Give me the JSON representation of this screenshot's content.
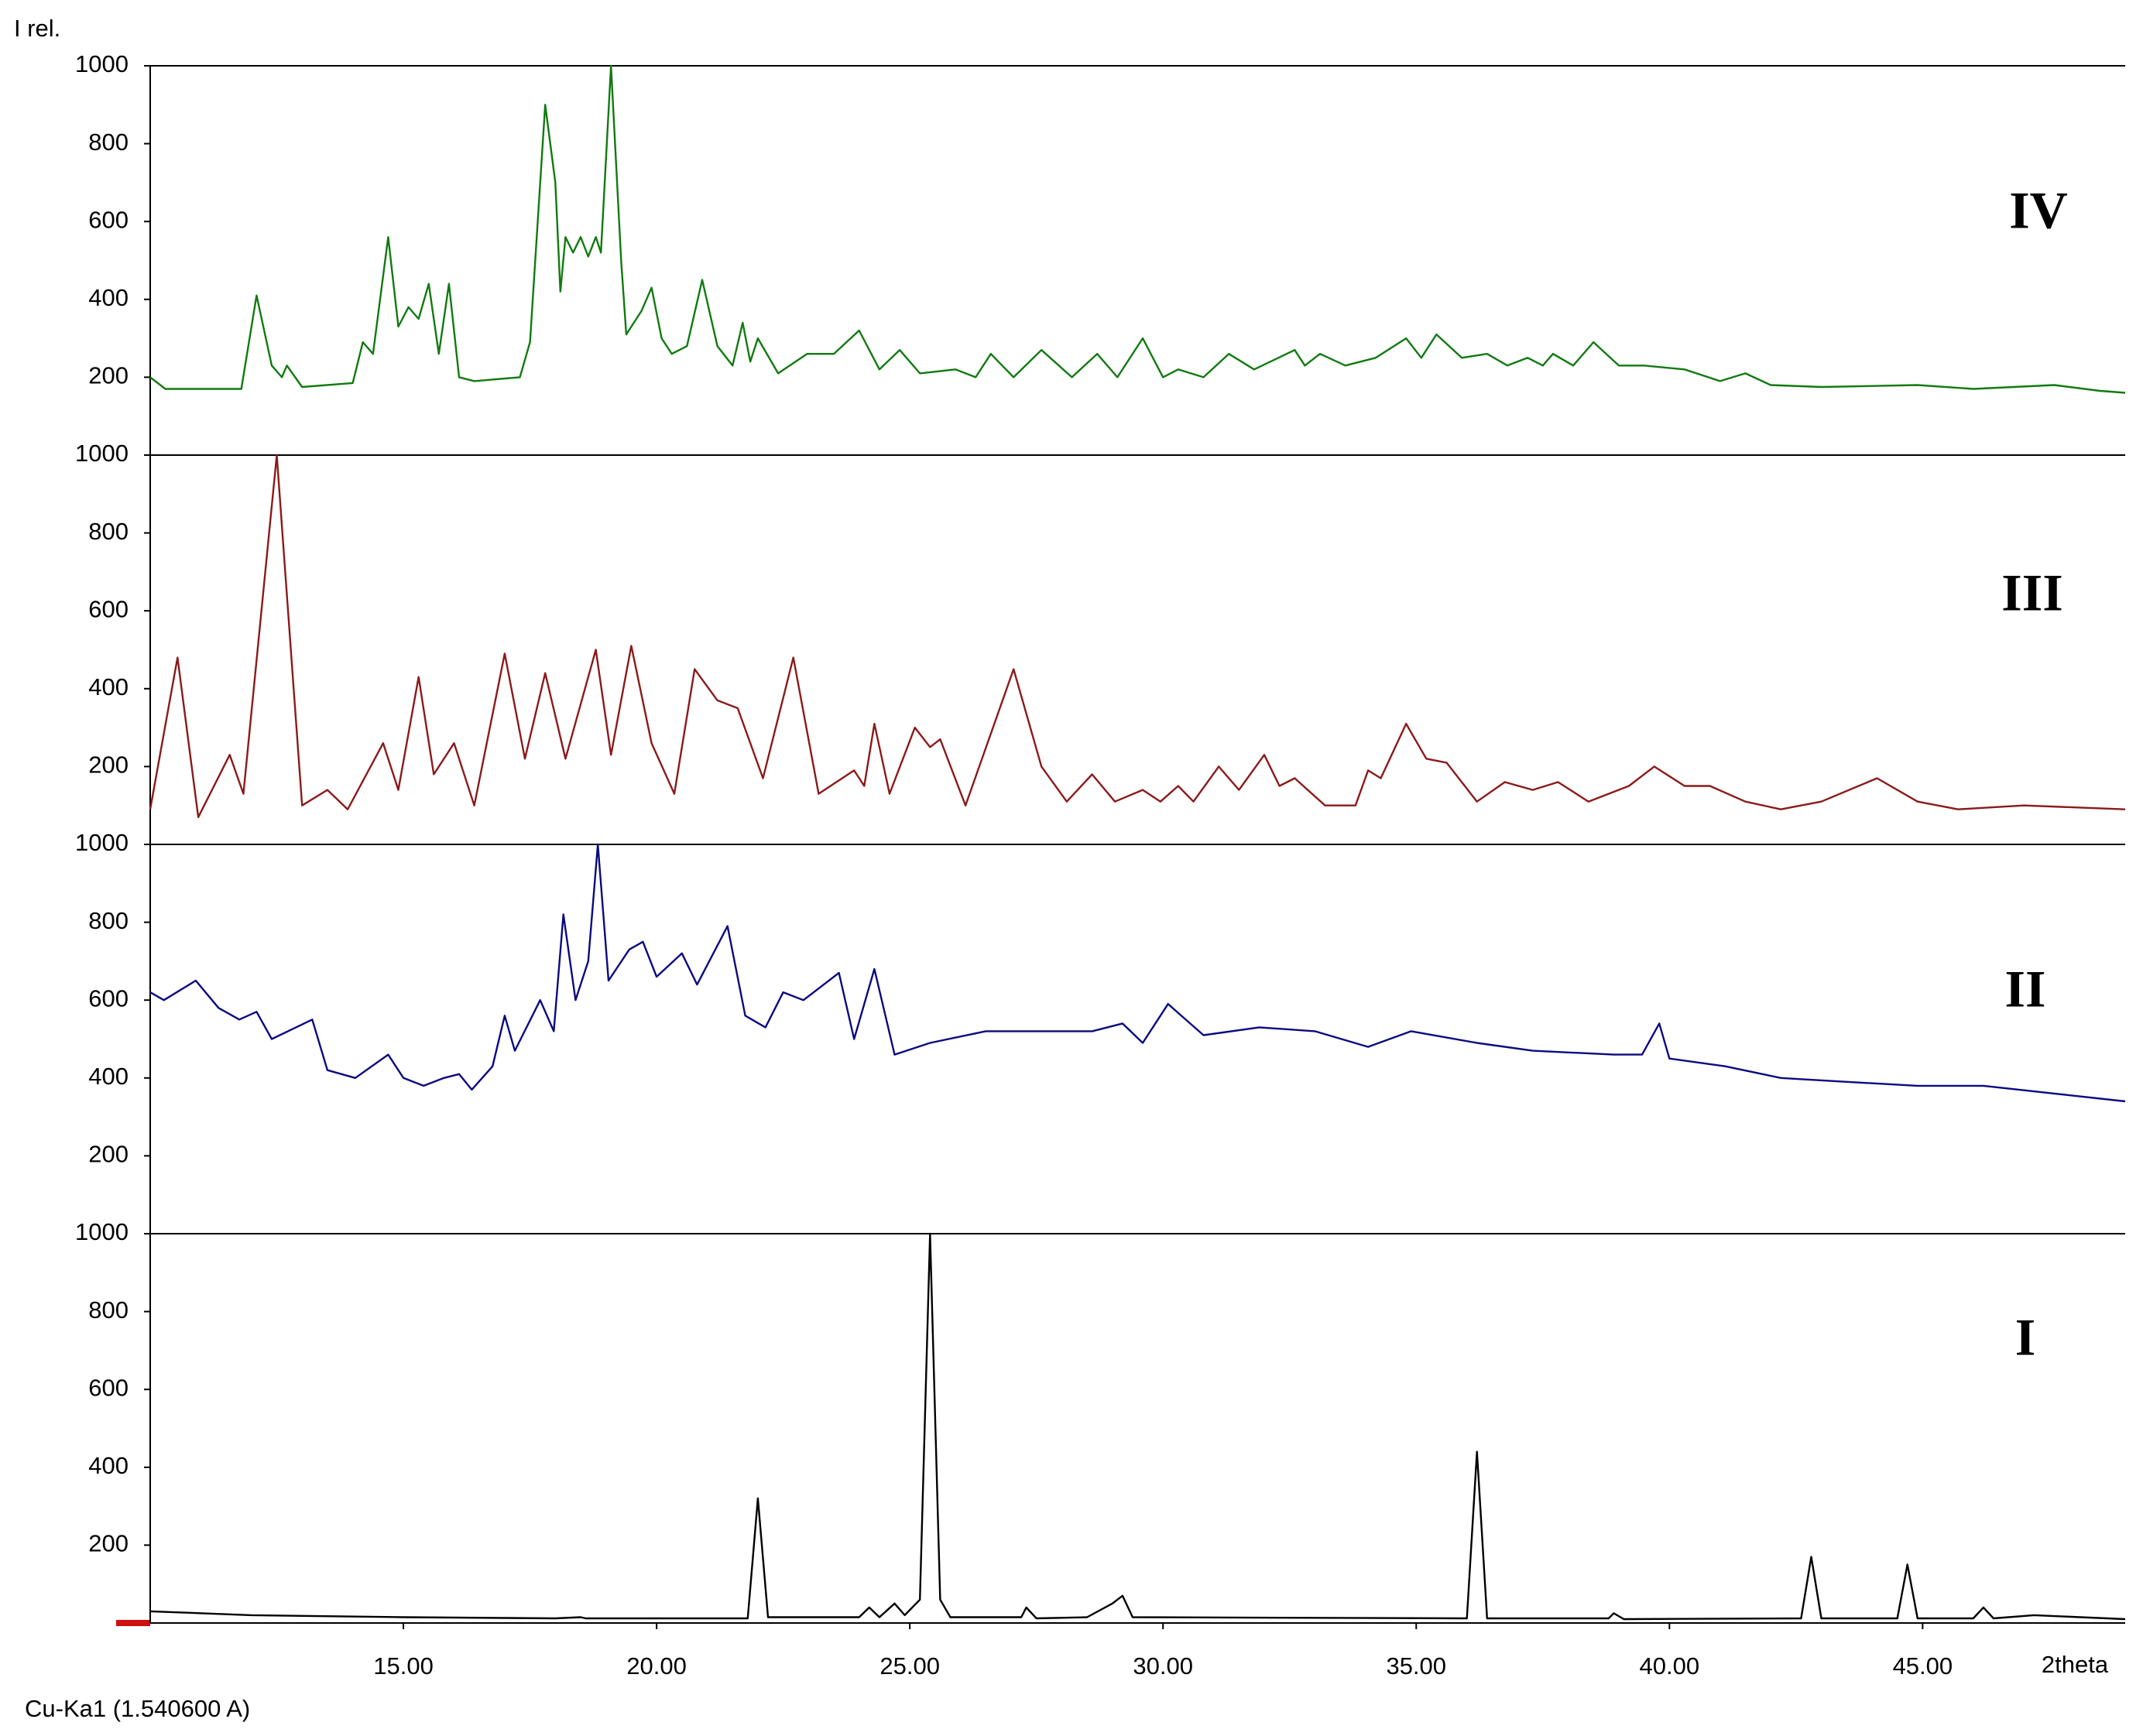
{
  "chart_data": [
    {
      "type": "line",
      "title": "IV",
      "ylabel": "I rel.",
      "color": "#117a11",
      "xlim": [
        10,
        49
      ],
      "ylim": [
        0,
        1000
      ],
      "yticks": [
        200,
        400,
        600,
        800,
        1000
      ],
      "x": [
        10,
        10.3,
        11.8,
        12.1,
        12.4,
        12.6,
        12.7,
        13,
        14,
        14.2,
        14.4,
        14.7,
        14.9,
        15.1,
        15.3,
        15.5,
        15.7,
        15.9,
        16.1,
        16.4,
        17.3,
        17.5,
        17.8,
        18.0,
        18.1,
        18.2,
        18.35,
        18.5,
        18.65,
        18.8,
        18.9,
        19.1,
        19.3,
        19.4,
        19.7,
        19.9,
        20.1,
        20.3,
        20.6,
        20.9,
        21.2,
        21.5,
        21.7,
        21.85,
        22.0,
        22.4,
        22.97,
        23.5,
        24.0,
        24.4,
        24.8,
        25.2,
        25.9,
        26.3,
        26.6,
        27.05,
        27.6,
        28.2,
        28.7,
        29.1,
        29.6,
        30.0,
        30.3,
        30.8,
        31.3,
        31.8,
        32.6,
        32.8,
        33.1,
        33.6,
        34.2,
        34.8,
        35.1,
        35.4,
        35.9,
        36.4,
        36.8,
        37.2,
        37.5,
        37.7,
        38.1,
        38.5,
        39.0,
        39.5,
        40.3,
        41.0,
        41.5,
        42.0,
        43,
        44.9,
        46,
        47.6,
        48.5,
        49
      ],
      "values": [
        200,
        170,
        170,
        410,
        230,
        200,
        230,
        175,
        185,
        290,
        260,
        560,
        330,
        380,
        350,
        440,
        260,
        440,
        200,
        190,
        200,
        290,
        900,
        700,
        420,
        560,
        520,
        560,
        510,
        560,
        520,
        1000,
        500,
        310,
        370,
        430,
        300,
        260,
        280,
        450,
        280,
        230,
        340,
        240,
        300,
        210,
        260,
        260,
        320,
        220,
        270,
        210,
        220,
        200,
        260,
        200,
        270,
        200,
        260,
        200,
        300,
        200,
        220,
        200,
        260,
        220,
        270,
        230,
        260,
        230,
        250,
        300,
        250,
        310,
        250,
        260,
        230,
        250,
        230,
        260,
        230,
        290,
        230,
        230,
        220,
        190,
        210,
        180,
        175,
        180,
        170,
        180,
        165,
        160
      ]
    },
    {
      "type": "line",
      "title": "III",
      "color": "#8b1a1a",
      "xlim": [
        10,
        49
      ],
      "ylim": [
        0,
        1000
      ],
      "yticks": [
        200,
        400,
        600,
        800,
        1000
      ],
      "x": [
        10,
        10.54,
        10.95,
        11.57,
        11.84,
        12.5,
        13.0,
        13.5,
        13.9,
        14.6,
        14.9,
        15.3,
        15.6,
        16.0,
        16.4,
        17.0,
        17.4,
        17.8,
        18.2,
        18.8,
        19.1,
        19.5,
        19.9,
        20.35,
        20.75,
        21.2,
        21.6,
        22.1,
        22.7,
        23.2,
        23.9,
        24.1,
        24.3,
        24.6,
        25.1,
        25.4,
        25.6,
        26.1,
        27.05,
        27.6,
        28.1,
        28.6,
        29.05,
        29.6,
        29.95,
        30.3,
        30.6,
        31.1,
        31.5,
        32.0,
        32.3,
        32.6,
        33.2,
        33.8,
        34.05,
        34.3,
        34.8,
        35.2,
        35.6,
        36.2,
        36.75,
        37.3,
        37.8,
        38.4,
        39.2,
        39.7,
        40.3,
        40.8,
        41.5,
        42.2,
        43.0,
        44.1,
        44.9,
        45.7,
        47.0,
        49
      ],
      "values": [
        90,
        480,
        70,
        230,
        130,
        1000,
        100,
        140,
        90,
        260,
        140,
        430,
        180,
        260,
        100,
        490,
        220,
        440,
        220,
        500,
        230,
        510,
        260,
        130,
        450,
        370,
        350,
        170,
        480,
        130,
        190,
        150,
        310,
        130,
        300,
        250,
        270,
        100,
        450,
        200,
        110,
        180,
        110,
        140,
        110,
        150,
        110,
        200,
        140,
        230,
        150,
        170,
        100,
        100,
        190,
        170,
        310,
        220,
        210,
        110,
        160,
        140,
        160,
        110,
        150,
        200,
        150,
        150,
        110,
        90,
        110,
        170,
        110,
        90,
        100,
        90
      ]
    },
    {
      "type": "line",
      "title": "II",
      "color": "#0a0a80",
      "xlim": [
        10,
        49
      ],
      "ylim": [
        0,
        1000
      ],
      "yticks": [
        200,
        400,
        600,
        800,
        1000
      ],
      "x": [
        10,
        10.27,
        10.9,
        11.35,
        11.76,
        12.1,
        12.4,
        13.2,
        13.5,
        14.05,
        14.7,
        15.0,
        15.4,
        15.8,
        16.1,
        16.35,
        16.76,
        17.0,
        17.2,
        17.7,
        17.97,
        18.16,
        18.4,
        18.65,
        18.84,
        19.05,
        19.46,
        19.73,
        20.0,
        20.5,
        20.8,
        21.4,
        21.75,
        22.15,
        22.5,
        22.9,
        23.6,
        23.9,
        24.3,
        24.7,
        25.4,
        26.5,
        27.6,
        28.6,
        29.2,
        29.6,
        30.1,
        30.8,
        31.9,
        33.0,
        34.05,
        34.9,
        36.2,
        37.3,
        38.9,
        39.46,
        39.8,
        40.0,
        41.1,
        42.2,
        43.5,
        44.9,
        46.2,
        47.6,
        49
      ],
      "values": [
        620,
        600,
        650,
        580,
        550,
        570,
        500,
        550,
        420,
        400,
        460,
        400,
        380,
        400,
        410,
        370,
        430,
        560,
        470,
        600,
        520,
        820,
        600,
        700,
        1000,
        650,
        730,
        750,
        660,
        720,
        640,
        790,
        560,
        530,
        620,
        600,
        670,
        500,
        680,
        460,
        490,
        520,
        520,
        520,
        540,
        490,
        590,
        510,
        530,
        520,
        480,
        520,
        490,
        470,
        460,
        460,
        540,
        450,
        430,
        400,
        390,
        380,
        380,
        360,
        340
      ]
    },
    {
      "type": "line",
      "title": "I",
      "xlabel": "2theta",
      "note": "Cu-Ka1 (1.540600 A)",
      "color": "#000000",
      "xlim": [
        10,
        49
      ],
      "ylim": [
        0,
        1000
      ],
      "yticks": [
        200,
        400,
        600,
        800,
        1000
      ],
      "xticks": [
        {
          "value": 15,
          "label": "15.00"
        },
        {
          "value": 20,
          "label": "20.00"
        },
        {
          "value": 25,
          "label": "25.00"
        },
        {
          "value": 30,
          "label": "30.00"
        },
        {
          "value": 35,
          "label": "35.00"
        },
        {
          "value": 40,
          "label": "40.00"
        },
        {
          "value": 45,
          "label": "45.00"
        }
      ],
      "x": [
        10,
        12,
        15,
        18,
        18.5,
        18.6,
        21.8,
        22.0,
        22.2,
        24,
        24.2,
        24.4,
        24.7,
        24.9,
        25.2,
        25.4,
        25.6,
        25.8,
        27.2,
        27.3,
        27.5,
        28.5,
        29.0,
        29.2,
        29.4,
        36.0,
        36.2,
        36.4,
        38.8,
        38.9,
        39.1,
        42.6,
        42.8,
        43.0,
        44.5,
        44.7,
        44.9,
        46.0,
        46.2,
        46.4,
        47.2,
        49
      ],
      "values": [
        30,
        20,
        15,
        12,
        15,
        12,
        12,
        320,
        15,
        15,
        40,
        15,
        50,
        20,
        60,
        1000,
        60,
        15,
        15,
        40,
        12,
        15,
        50,
        70,
        15,
        12,
        440,
        12,
        12,
        25,
        10,
        12,
        170,
        12,
        12,
        150,
        12,
        12,
        40,
        12,
        20,
        10
      ]
    }
  ]
}
